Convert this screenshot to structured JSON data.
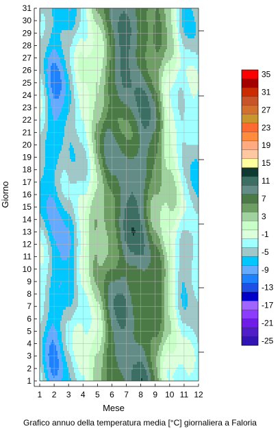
{
  "caption": "Grafico annuo della temperatura media [°C] giornaliera a Faloria",
  "chart_data": {
    "type": "heatmap",
    "title": "Grafico annuo della temperatura media [°C] giornaliera a Faloria",
    "xlabel": "Mese",
    "ylabel": "Giorno",
    "xlim": [
      1,
      12
    ],
    "ylim": [
      1,
      31
    ],
    "x_ticks": [
      "1",
      "2",
      "3",
      "4",
      "5",
      "6",
      "7",
      "8",
      "9",
      "10",
      "11",
      "12"
    ],
    "y_ticks": [
      "1",
      "2",
      "3",
      "4",
      "5",
      "6",
      "7",
      "8",
      "9",
      "10",
      "11",
      "12",
      "13",
      "14",
      "15",
      "16",
      "17",
      "18",
      "19",
      "20",
      "21",
      "22",
      "23",
      "24",
      "25",
      "26",
      "27",
      "28",
      "29",
      "30",
      "31"
    ],
    "grid": true,
    "legend": {
      "position": "right",
      "levels": [
        35,
        33,
        31,
        29,
        27,
        25,
        23,
        21,
        19,
        17,
        15,
        13,
        11,
        9,
        7,
        5,
        3,
        1,
        -1,
        -3,
        -5,
        -7,
        -9,
        -11,
        -13,
        -15,
        -17,
        -19,
        -21,
        -23,
        -25
      ],
      "labels": [
        "35",
        "31",
        "27",
        "23",
        "19",
        "15",
        "11",
        "7",
        "3",
        "-1",
        "-5",
        "-9",
        "-13",
        "-17",
        "-21",
        "-25"
      ],
      "colors": [
        "#ff0000",
        "#a50000",
        "#cc2a00",
        "#c8552a",
        "#d2702d",
        "#c8962d",
        "#ff6a30",
        "#ff8c3c",
        "#ffaa80",
        "#ffc8a0",
        "#ffffa0",
        "#0f3a32",
        "#3c6e64",
        "#648c86",
        "#4c7a46",
        "#6e9e64",
        "#a0d2a0",
        "#c8ffc8",
        "#dcffdc",
        "#a0ffff",
        "#a0c8c8",
        "#00c8ff",
        "#64aaff",
        "#1e82ff",
        "#1e50e6",
        "#0000c8",
        "#a064ff",
        "#8c3cff",
        "#6e1ee6",
        "#501ec8",
        "#3214b4"
      ]
    },
    "months": [
      1,
      2,
      3,
      4,
      5,
      6,
      7,
      8,
      9,
      10,
      11,
      12
    ],
    "temperature_profile": [
      -3,
      -7,
      -5,
      -1,
      4,
      8,
      10,
      10,
      7,
      2,
      -3,
      -3
    ]
  }
}
